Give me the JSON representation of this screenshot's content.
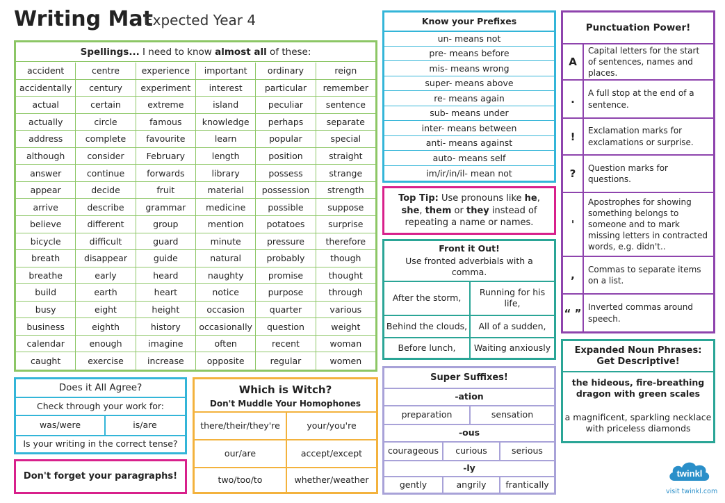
{
  "header": {
    "title": "Writing Mat",
    "subtitle": "Expected Year 4"
  },
  "spellings": {
    "heading_bold": "Spellings...",
    "heading_mid": " I need to know ",
    "heading_bold2": "almost all",
    "heading_end": " of these:",
    "rows": [
      [
        "accident",
        "centre",
        "experience",
        "important",
        "ordinary",
        "reign"
      ],
      [
        "accidentally",
        "century",
        "experiment",
        "interest",
        "particular",
        "remember"
      ],
      [
        "actual",
        "certain",
        "extreme",
        "island",
        "peculiar",
        "sentence"
      ],
      [
        "actually",
        "circle",
        "famous",
        "knowledge",
        "perhaps",
        "separate"
      ],
      [
        "address",
        "complete",
        "favourite",
        "learn",
        "popular",
        "special"
      ],
      [
        "although",
        "consider",
        "February",
        "length",
        "position",
        "straight"
      ],
      [
        "answer",
        "continue",
        "forwards",
        "library",
        "possess",
        "strange"
      ],
      [
        "appear",
        "decide",
        "fruit",
        "material",
        "possession",
        "strength"
      ],
      [
        "arrive",
        "describe",
        "grammar",
        "medicine",
        "possible",
        "suppose"
      ],
      [
        "believe",
        "different",
        "group",
        "mention",
        "potatoes",
        "surprise"
      ],
      [
        "bicycle",
        "difficult",
        "guard",
        "minute",
        "pressure",
        "therefore"
      ],
      [
        "breath",
        "disappear",
        "guide",
        "natural",
        "probably",
        "though"
      ],
      [
        "breathe",
        "early",
        "heard",
        "naughty",
        "promise",
        "thought"
      ],
      [
        "build",
        "earth",
        "heart",
        "notice",
        "purpose",
        "through"
      ],
      [
        "busy",
        "eight",
        "height",
        "occasion",
        "quarter",
        "various"
      ],
      [
        "business",
        "eighth",
        "history",
        "occasionally",
        "question",
        "weight"
      ],
      [
        "calendar",
        "enough",
        "imagine",
        "often",
        "recent",
        "woman"
      ],
      [
        "caught",
        "exercise",
        "increase",
        "opposite",
        "regular",
        "women"
      ]
    ]
  },
  "agree": {
    "title": "Does it All Agree?",
    "line1": "Check through your work for:",
    "left": "was/were",
    "right": "is/are",
    "line3": "Is your writing in the correct tense?"
  },
  "paragraphs": {
    "text": "Don't forget your paragraphs!"
  },
  "homophones": {
    "title": "Which is Witch?",
    "subtitle": "Don't Muddle Your Homophones",
    "cells": [
      [
        "there/their/they're",
        "your/you're"
      ],
      [
        "our/are",
        "accept/except"
      ],
      [
        "two/too/to",
        "whether/weather"
      ]
    ]
  },
  "prefixes": {
    "title": "Know your Prefixes",
    "items": [
      "un- means not",
      "pre-  means before",
      "mis- means wrong",
      "super- means above",
      "re- means again",
      "sub- means under",
      "inter- means between",
      "anti- means against",
      "auto- means self",
      "im/ir/in/il- mean not"
    ]
  },
  "toptip": {
    "label": "Top Tip:",
    "part1": " Use pronouns like ",
    "he": "he",
    "comma1": ", ",
    "she": "she",
    "comma2": ", ",
    "them": "them",
    "or": " or ",
    "they": "they",
    "part2": " instead of repeating a name or names."
  },
  "fronted": {
    "title": "Front it Out!",
    "sub": "Use fronted adverbials with a comma.",
    "cells": [
      [
        "After the storm,",
        "Running for his life,"
      ],
      [
        "Behind the clouds,",
        "All of a sudden,"
      ],
      [
        "Before lunch,",
        "Waiting anxiously"
      ]
    ]
  },
  "suffixes": {
    "title": "Super Suffixes!",
    "ation": "-ation",
    "ation_words": [
      "preparation",
      "sensation"
    ],
    "ous": "-ous",
    "ous_words": [
      "courageous",
      "curious",
      "serious"
    ],
    "ly": "-ly",
    "ly_words": [
      "gently",
      "angrily",
      "frantically"
    ]
  },
  "punctuation": {
    "title": "Punctuation Power!",
    "rows": [
      {
        "symbol": "A",
        "text": "Capital letters for the start of sentences, names and places."
      },
      {
        "symbol": ".",
        "text": "A full stop at the end of a sentence."
      },
      {
        "symbol": "!",
        "text": "Exclamation marks for exclamations or surprise."
      },
      {
        "symbol": "?",
        "text": "Question marks for questions."
      },
      {
        "symbol": "'",
        "text": "Apostrophes for showing something belongs to someone and to mark missing letters in contracted words, e.g. didn't.."
      },
      {
        "symbol": ",",
        "text": "Commas to separate items on a list."
      },
      {
        "symbol": "“ ”",
        "text": "Inverted commas around speech."
      }
    ]
  },
  "noun_phrases": {
    "title": "Expanded Noun Phrases: Get Descriptive!",
    "ex1": "the hideous, fire-breathing dragon with green scales",
    "ex2": "a magnificent, sparkling necklace with priceless diamonds"
  },
  "brand": {
    "logo": "twinkl",
    "url": "visit twinkl.com"
  },
  "colors": {
    "green": "#8cc665",
    "cyan": "#33b5d8",
    "pink": "#d8208b",
    "orange": "#f3b23d",
    "teal": "#2aa596",
    "lilac": "#a8a2d8",
    "purple": "#8e44ad",
    "brand_blue": "#2a8fc9"
  }
}
